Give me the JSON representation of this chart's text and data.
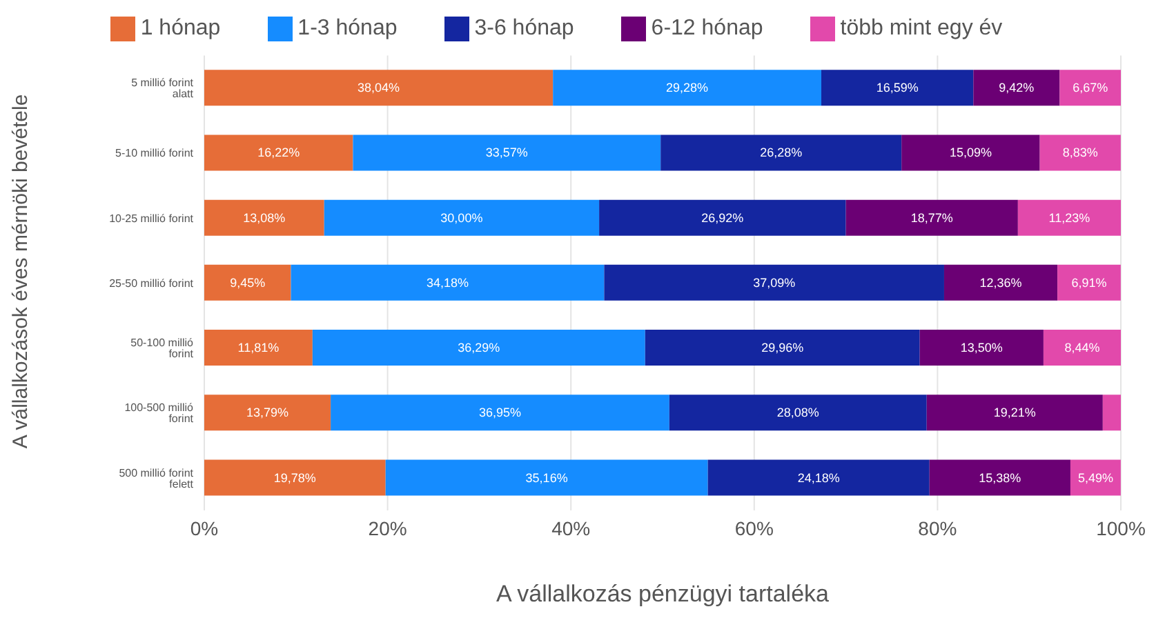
{
  "chart_data": {
    "type": "bar",
    "orientation": "horizontal",
    "stacked": true,
    "xlabel": "A vállalkozás pénzügyi tartaléka",
    "ylabel": "A vállalkozások éves mérnöki bevétele",
    "categories": [
      "5 millió forint alatt",
      "5-10 millió forint",
      "10-25 millió forint",
      "25-50 millió forint",
      "50-100 millió forint",
      "100-500 millió forint",
      "500 millió forint felett"
    ],
    "series": [
      {
        "name": "1 hónap",
        "color": "#e66d38",
        "values": [
          38.04,
          16.22,
          13.08,
          9.45,
          11.81,
          13.79,
          19.78
        ],
        "value_labels": [
          "38,04%",
          "16,22%",
          "13,08%",
          "9,45%",
          "11,81%",
          "13,79%",
          "19,78%"
        ]
      },
      {
        "name": "1-3 hónap",
        "color": "#158cff",
        "values": [
          29.28,
          33.57,
          30.0,
          34.18,
          36.29,
          36.95,
          35.16
        ],
        "value_labels": [
          "29,28%",
          "33,57%",
          "30,00%",
          "34,18%",
          "36,29%",
          "36,95%",
          "35,16%"
        ]
      },
      {
        "name": "3-6 hónap",
        "color": "#1426a0",
        "values": [
          16.59,
          26.28,
          26.92,
          37.09,
          29.96,
          28.08,
          24.18
        ],
        "value_labels": [
          "16,59%",
          "26,28%",
          "26,92%",
          "37,09%",
          "29,96%",
          "28,08%",
          "24,18%"
        ]
      },
      {
        "name": "6-12 hónap",
        "color": "#6b0074",
        "values": [
          9.42,
          15.09,
          18.77,
          12.36,
          13.5,
          19.21,
          15.38
        ],
        "value_labels": [
          "9,42%",
          "15,09%",
          "18,77%",
          "12,36%",
          "13,50%",
          "19,21%",
          "15,38%"
        ]
      },
      {
        "name": "több mint egy év",
        "color": "#e249ab",
        "values": [
          6.67,
          8.83,
          11.23,
          6.91,
          8.44,
          2,
          5.49
        ],
        "value_labels": [
          "6,67%",
          "8,83%",
          "11,23%",
          "6,91%",
          "8,44%",
          null,
          "5,49%"
        ]
      }
    ],
    "xlim": [
      0,
      100
    ],
    "xticks": [
      {
        "value": 0,
        "label": "0%"
      },
      {
        "value": 20,
        "label": "20%"
      },
      {
        "value": 40,
        "label": "40%"
      },
      {
        "value": 60,
        "label": "60%"
      },
      {
        "value": 80,
        "label": "80%"
      },
      {
        "value": 100,
        "label": "100%"
      }
    ],
    "grid": "x",
    "legend": "top"
  }
}
